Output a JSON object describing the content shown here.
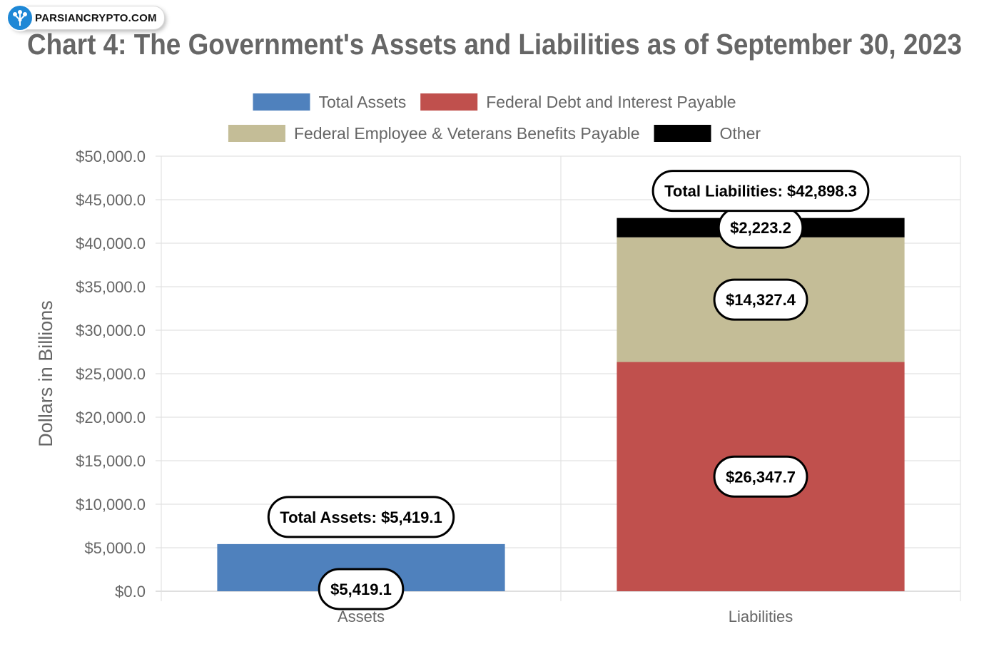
{
  "watermark": {
    "text": "PARSIANCRYPTO.COM",
    "icon": "tree-logo-icon",
    "color": "#1e88d6"
  },
  "chart_data": {
    "type": "bar",
    "stacked": true,
    "title": "Chart 4: The Government's Assets and Liabilities as of September 30, 2023",
    "ylabel": "Dollars in Billions",
    "xlabel": "",
    "categories": [
      "Assets",
      "Liabilities"
    ],
    "ylim": [
      0,
      50000
    ],
    "ytick_step": 5000,
    "yticks": [
      "$0.0",
      "$5,000.0",
      "$10,000.0",
      "$15,000.0",
      "$20,000.0",
      "$25,000.0",
      "$30,000.0",
      "$35,000.0",
      "$40,000.0",
      "$45,000.0",
      "$50,000.0"
    ],
    "grid": true,
    "legend_position": "top",
    "series": [
      {
        "name": "Total Assets",
        "color": "#4f81bd",
        "values": [
          5419.1,
          0
        ],
        "labels": [
          "$5,419.1",
          ""
        ]
      },
      {
        "name": "Federal Debt and Interest Payable",
        "color": "#c0504d",
        "values": [
          0,
          26347.7
        ],
        "labels": [
          "",
          "$26,347.7"
        ]
      },
      {
        "name": "Federal Employee & Veterans Benefits Payable",
        "color": "#c4bd97",
        "values": [
          0,
          14327.4
        ],
        "labels": [
          "",
          "$14,327.4"
        ]
      },
      {
        "name": "Other",
        "color": "#000000",
        "values": [
          0,
          2223.2
        ],
        "labels": [
          "",
          "$2,223.2"
        ]
      }
    ],
    "totals": [
      {
        "category": "Assets",
        "value": 5419.1,
        "label": "Total Assets: $5,419.1"
      },
      {
        "category": "Liabilities",
        "value": 42898.3,
        "label": "Total Liabilities: $42,898.3"
      }
    ]
  }
}
